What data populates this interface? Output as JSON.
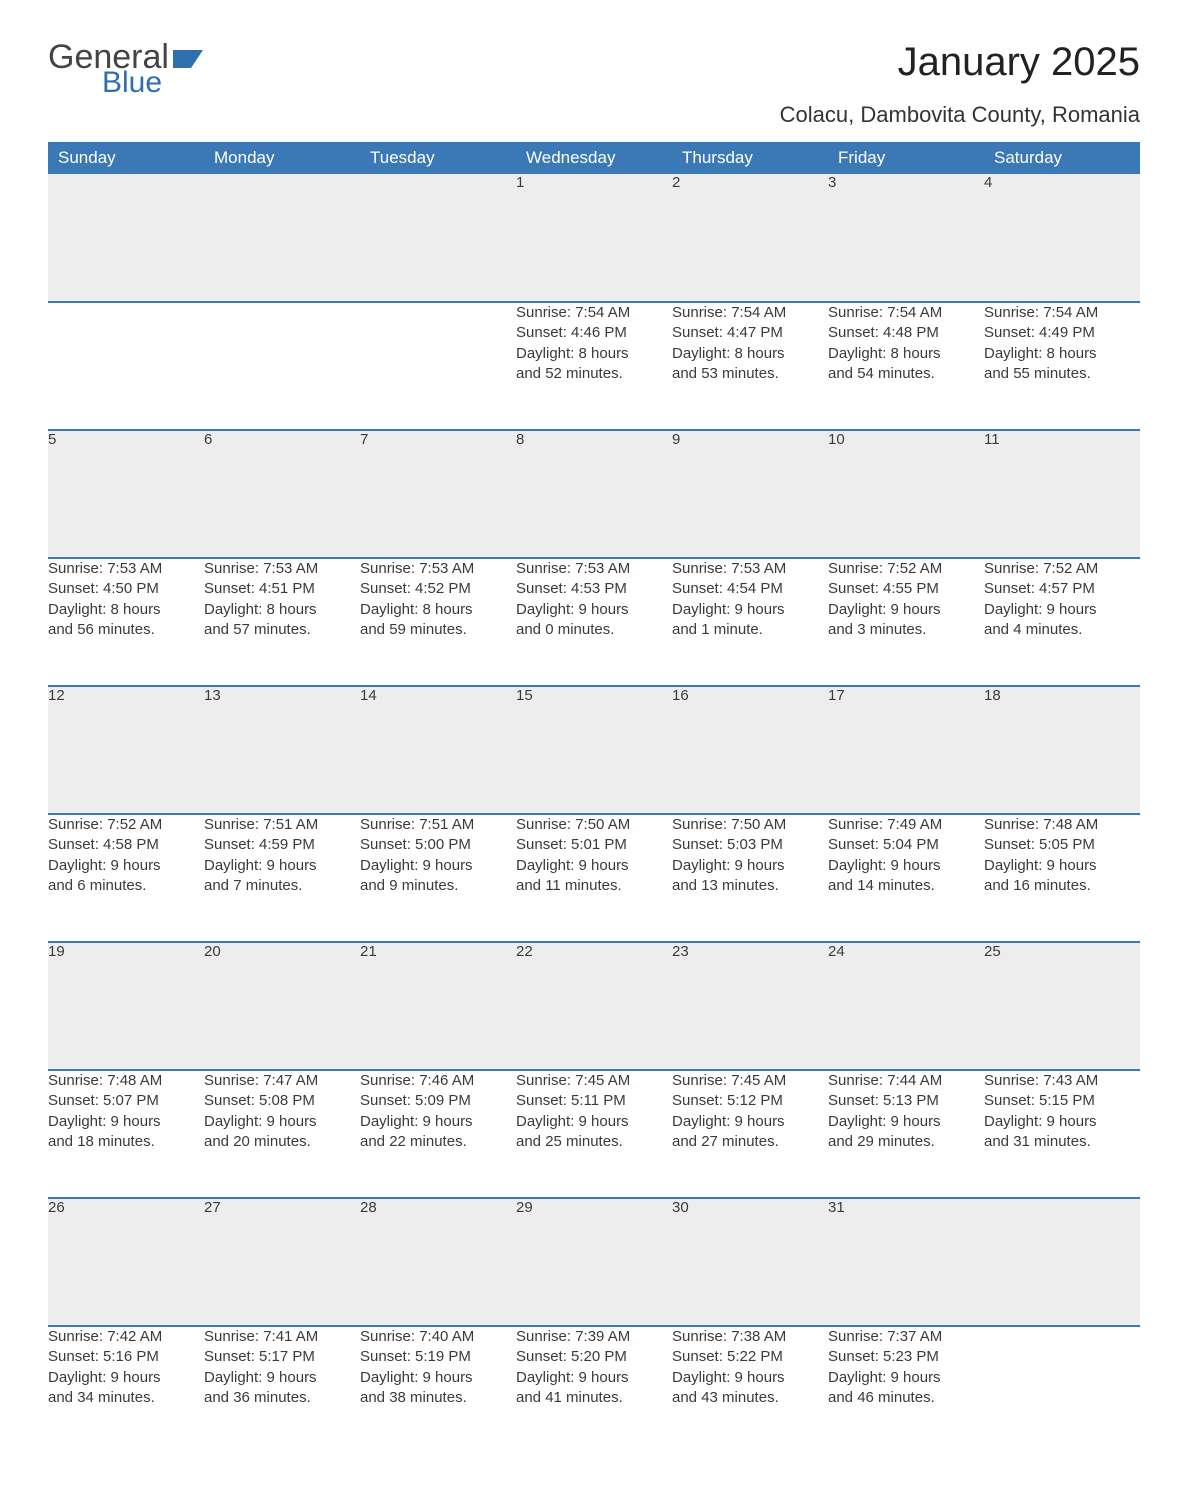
{
  "logo": {
    "text1": "General",
    "text2": "Blue",
    "accent_color": "#2f6fae"
  },
  "title": "January 2025",
  "location": "Colacu, Dambovita County, Romania",
  "colors": {
    "header_bg": "#3a78b6",
    "header_text": "#ffffff",
    "daynum_bg": "#ededed",
    "rule": "#3a78b6",
    "body_text": "#3a3a3a"
  },
  "weekdays": [
    "Sunday",
    "Monday",
    "Tuesday",
    "Wednesday",
    "Thursday",
    "Friday",
    "Saturday"
  ],
  "weeks": [
    [
      null,
      null,
      null,
      {
        "n": "1",
        "sr": "Sunrise: 7:54 AM",
        "ss": "Sunset: 4:46 PM",
        "d1": "Daylight: 8 hours",
        "d2": "and 52 minutes."
      },
      {
        "n": "2",
        "sr": "Sunrise: 7:54 AM",
        "ss": "Sunset: 4:47 PM",
        "d1": "Daylight: 8 hours",
        "d2": "and 53 minutes."
      },
      {
        "n": "3",
        "sr": "Sunrise: 7:54 AM",
        "ss": "Sunset: 4:48 PM",
        "d1": "Daylight: 8 hours",
        "d2": "and 54 minutes."
      },
      {
        "n": "4",
        "sr": "Sunrise: 7:54 AM",
        "ss": "Sunset: 4:49 PM",
        "d1": "Daylight: 8 hours",
        "d2": "and 55 minutes."
      }
    ],
    [
      {
        "n": "5",
        "sr": "Sunrise: 7:53 AM",
        "ss": "Sunset: 4:50 PM",
        "d1": "Daylight: 8 hours",
        "d2": "and 56 minutes."
      },
      {
        "n": "6",
        "sr": "Sunrise: 7:53 AM",
        "ss": "Sunset: 4:51 PM",
        "d1": "Daylight: 8 hours",
        "d2": "and 57 minutes."
      },
      {
        "n": "7",
        "sr": "Sunrise: 7:53 AM",
        "ss": "Sunset: 4:52 PM",
        "d1": "Daylight: 8 hours",
        "d2": "and 59 minutes."
      },
      {
        "n": "8",
        "sr": "Sunrise: 7:53 AM",
        "ss": "Sunset: 4:53 PM",
        "d1": "Daylight: 9 hours",
        "d2": "and 0 minutes."
      },
      {
        "n": "9",
        "sr": "Sunrise: 7:53 AM",
        "ss": "Sunset: 4:54 PM",
        "d1": "Daylight: 9 hours",
        "d2": "and 1 minute."
      },
      {
        "n": "10",
        "sr": "Sunrise: 7:52 AM",
        "ss": "Sunset: 4:55 PM",
        "d1": "Daylight: 9 hours",
        "d2": "and 3 minutes."
      },
      {
        "n": "11",
        "sr": "Sunrise: 7:52 AM",
        "ss": "Sunset: 4:57 PM",
        "d1": "Daylight: 9 hours",
        "d2": "and 4 minutes."
      }
    ],
    [
      {
        "n": "12",
        "sr": "Sunrise: 7:52 AM",
        "ss": "Sunset: 4:58 PM",
        "d1": "Daylight: 9 hours",
        "d2": "and 6 minutes."
      },
      {
        "n": "13",
        "sr": "Sunrise: 7:51 AM",
        "ss": "Sunset: 4:59 PM",
        "d1": "Daylight: 9 hours",
        "d2": "and 7 minutes."
      },
      {
        "n": "14",
        "sr": "Sunrise: 7:51 AM",
        "ss": "Sunset: 5:00 PM",
        "d1": "Daylight: 9 hours",
        "d2": "and 9 minutes."
      },
      {
        "n": "15",
        "sr": "Sunrise: 7:50 AM",
        "ss": "Sunset: 5:01 PM",
        "d1": "Daylight: 9 hours",
        "d2": "and 11 minutes."
      },
      {
        "n": "16",
        "sr": "Sunrise: 7:50 AM",
        "ss": "Sunset: 5:03 PM",
        "d1": "Daylight: 9 hours",
        "d2": "and 13 minutes."
      },
      {
        "n": "17",
        "sr": "Sunrise: 7:49 AM",
        "ss": "Sunset: 5:04 PM",
        "d1": "Daylight: 9 hours",
        "d2": "and 14 minutes."
      },
      {
        "n": "18",
        "sr": "Sunrise: 7:48 AM",
        "ss": "Sunset: 5:05 PM",
        "d1": "Daylight: 9 hours",
        "d2": "and 16 minutes."
      }
    ],
    [
      {
        "n": "19",
        "sr": "Sunrise: 7:48 AM",
        "ss": "Sunset: 5:07 PM",
        "d1": "Daylight: 9 hours",
        "d2": "and 18 minutes."
      },
      {
        "n": "20",
        "sr": "Sunrise: 7:47 AM",
        "ss": "Sunset: 5:08 PM",
        "d1": "Daylight: 9 hours",
        "d2": "and 20 minutes."
      },
      {
        "n": "21",
        "sr": "Sunrise: 7:46 AM",
        "ss": "Sunset: 5:09 PM",
        "d1": "Daylight: 9 hours",
        "d2": "and 22 minutes."
      },
      {
        "n": "22",
        "sr": "Sunrise: 7:45 AM",
        "ss": "Sunset: 5:11 PM",
        "d1": "Daylight: 9 hours",
        "d2": "and 25 minutes."
      },
      {
        "n": "23",
        "sr": "Sunrise: 7:45 AM",
        "ss": "Sunset: 5:12 PM",
        "d1": "Daylight: 9 hours",
        "d2": "and 27 minutes."
      },
      {
        "n": "24",
        "sr": "Sunrise: 7:44 AM",
        "ss": "Sunset: 5:13 PM",
        "d1": "Daylight: 9 hours",
        "d2": "and 29 minutes."
      },
      {
        "n": "25",
        "sr": "Sunrise: 7:43 AM",
        "ss": "Sunset: 5:15 PM",
        "d1": "Daylight: 9 hours",
        "d2": "and 31 minutes."
      }
    ],
    [
      {
        "n": "26",
        "sr": "Sunrise: 7:42 AM",
        "ss": "Sunset: 5:16 PM",
        "d1": "Daylight: 9 hours",
        "d2": "and 34 minutes."
      },
      {
        "n": "27",
        "sr": "Sunrise: 7:41 AM",
        "ss": "Sunset: 5:17 PM",
        "d1": "Daylight: 9 hours",
        "d2": "and 36 minutes."
      },
      {
        "n": "28",
        "sr": "Sunrise: 7:40 AM",
        "ss": "Sunset: 5:19 PM",
        "d1": "Daylight: 9 hours",
        "d2": "and 38 minutes."
      },
      {
        "n": "29",
        "sr": "Sunrise: 7:39 AM",
        "ss": "Sunset: 5:20 PM",
        "d1": "Daylight: 9 hours",
        "d2": "and 41 minutes."
      },
      {
        "n": "30",
        "sr": "Sunrise: 7:38 AM",
        "ss": "Sunset: 5:22 PM",
        "d1": "Daylight: 9 hours",
        "d2": "and 43 minutes."
      },
      {
        "n": "31",
        "sr": "Sunrise: 7:37 AM",
        "ss": "Sunset: 5:23 PM",
        "d1": "Daylight: 9 hours",
        "d2": "and 46 minutes."
      },
      null
    ]
  ]
}
